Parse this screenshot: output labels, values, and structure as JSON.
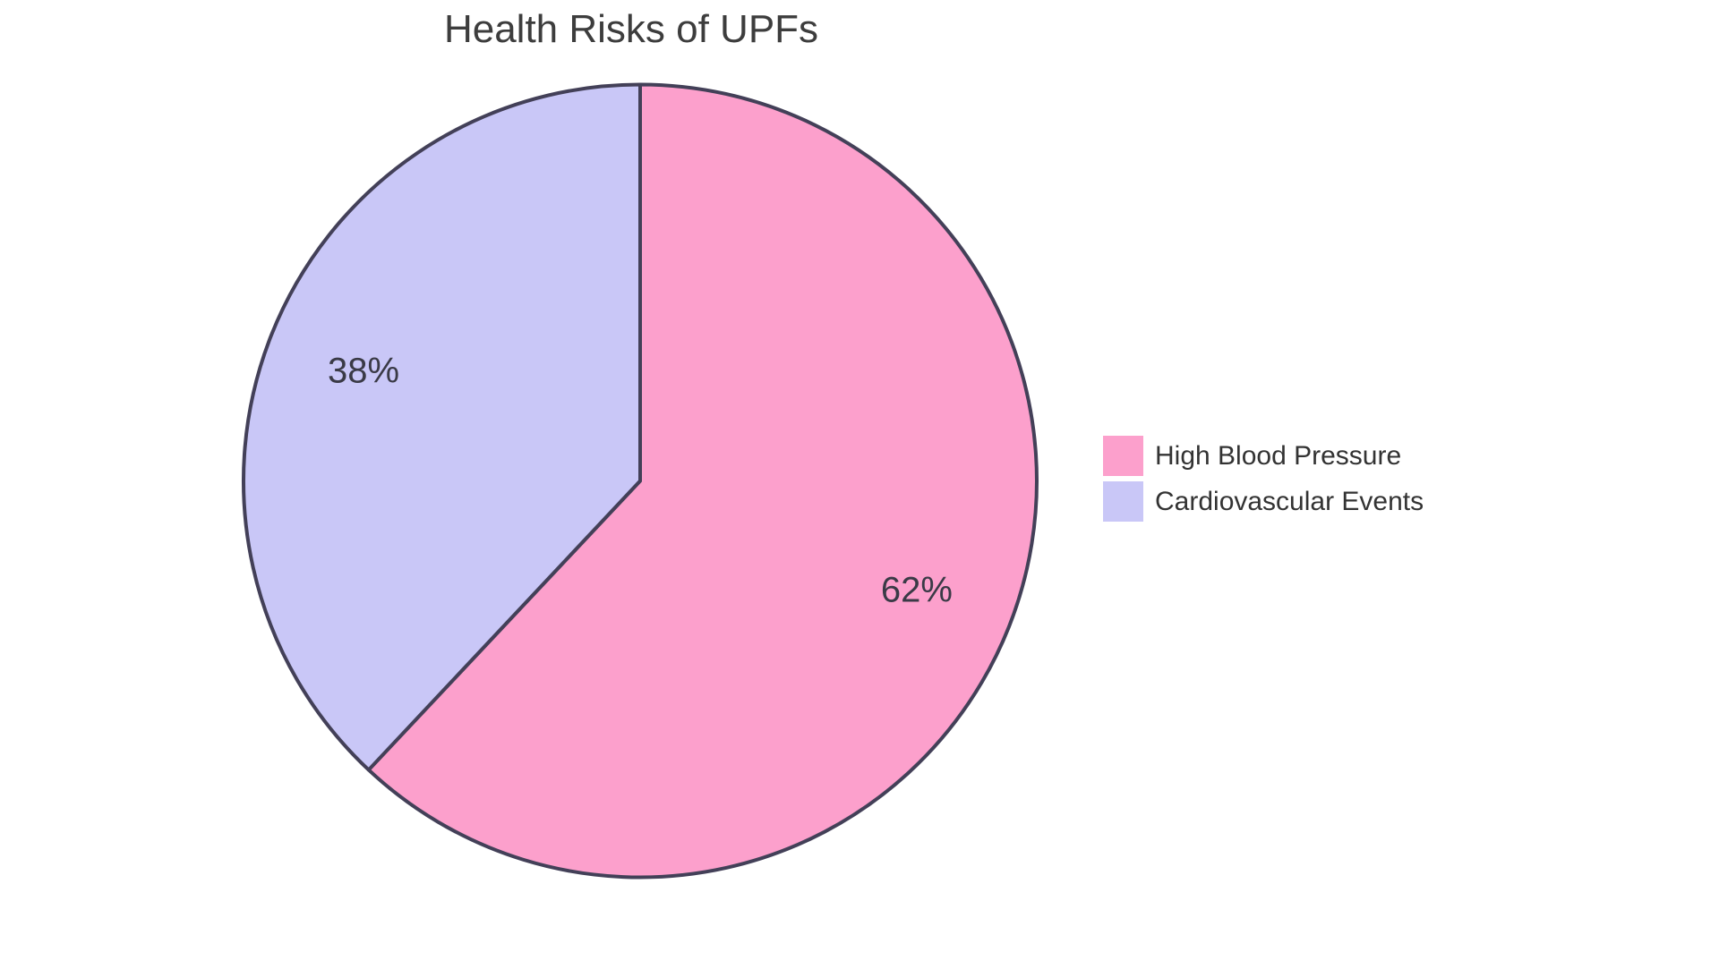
{
  "chart_data": {
    "type": "pie",
    "title": "Health Risks of UPFs",
    "slices": [
      {
        "label": "High Blood Pressure",
        "value": 62,
        "display": "62%",
        "color": "#FCA0CC"
      },
      {
        "label": "Cardiovascular Events",
        "value": 38,
        "display": "38%",
        "color": "#C9C7F7"
      }
    ],
    "start_angle": "12 o'clock",
    "direction": "clockwise",
    "legend_position": "right",
    "outline_color": "#434058",
    "title_color": "#3D3D3D",
    "label_color": "#3A3A46",
    "background": "#FFFFFF"
  }
}
